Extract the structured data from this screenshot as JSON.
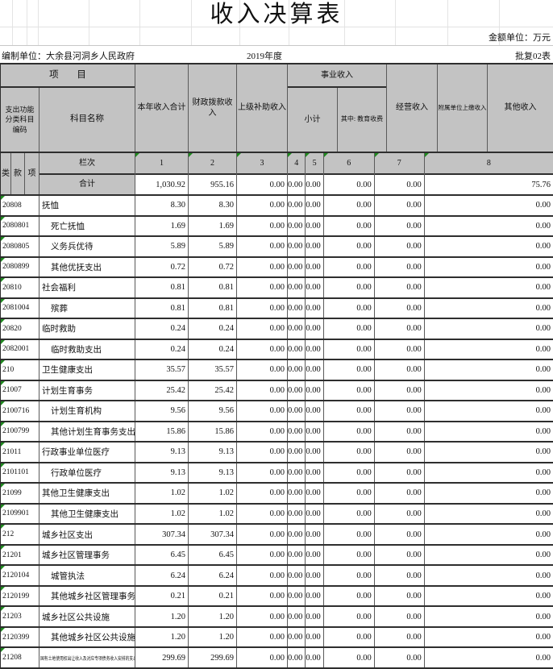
{
  "title": "收入决算表",
  "meta": {
    "unit": "金额单位：万元",
    "org": "编制单位：大余县河洞乡人民政府",
    "year": "2019年度",
    "doc_no": "批复02表"
  },
  "header": {
    "project": "项  目",
    "code_col": "支出功能分类科目编码",
    "name_col": "科目名称",
    "business_group": "事业收入",
    "cols": [
      "本年收入合计",
      "财政拨款收入",
      "上级补助收入",
      "小计",
      "其中: 教育收费",
      "经营收入",
      "附属单位上缴收入",
      "其他收入"
    ],
    "class_cols": [
      "类",
      "款",
      "项"
    ],
    "row_label": "栏次",
    "col_numbers": [
      "1",
      "2",
      "3",
      "4",
      "5",
      "6",
      "7",
      "8"
    ],
    "total_label": "合计"
  },
  "total_row": [
    "1,030.92",
    "955.16",
    "0.00",
    "0.00",
    "0.00",
    "0.00",
    "0.00",
    "75.76"
  ],
  "rows": [
    {
      "code": "20808",
      "name": "抚恤",
      "indent": 0,
      "values": [
        "8.30",
        "8.30",
        "0.00",
        "0.00",
        "0.00",
        "0.00",
        "0.00",
        "0.00"
      ]
    },
    {
      "code": "2080801",
      "name": "死亡抚恤",
      "indent": 1,
      "values": [
        "1.69",
        "1.69",
        "0.00",
        "0.00",
        "0.00",
        "0.00",
        "0.00",
        "0.00"
      ]
    },
    {
      "code": "2080805",
      "name": "义务兵优待",
      "indent": 1,
      "values": [
        "5.89",
        "5.89",
        "0.00",
        "0.00",
        "0.00",
        "0.00",
        "0.00",
        "0.00"
      ]
    },
    {
      "code": "2080899",
      "name": "其他优抚支出",
      "indent": 1,
      "values": [
        "0.72",
        "0.72",
        "0.00",
        "0.00",
        "0.00",
        "0.00",
        "0.00",
        "0.00"
      ]
    },
    {
      "code": "20810",
      "name": "社会福利",
      "indent": 0,
      "values": [
        "0.81",
        "0.81",
        "0.00",
        "0.00",
        "0.00",
        "0.00",
        "0.00",
        "0.00"
      ]
    },
    {
      "code": "2081004",
      "name": "殡葬",
      "indent": 1,
      "values": [
        "0.81",
        "0.81",
        "0.00",
        "0.00",
        "0.00",
        "0.00",
        "0.00",
        "0.00"
      ]
    },
    {
      "code": "20820",
      "name": "临时救助",
      "indent": 0,
      "values": [
        "0.24",
        "0.24",
        "0.00",
        "0.00",
        "0.00",
        "0.00",
        "0.00",
        "0.00"
      ]
    },
    {
      "code": "2082001",
      "name": "临时救助支出",
      "indent": 1,
      "values": [
        "0.24",
        "0.24",
        "0.00",
        "0.00",
        "0.00",
        "0.00",
        "0.00",
        "0.00"
      ]
    },
    {
      "code": "210",
      "name": "卫生健康支出",
      "indent": 0,
      "values": [
        "35.57",
        "35.57",
        "0.00",
        "0.00",
        "0.00",
        "0.00",
        "0.00",
        "0.00"
      ]
    },
    {
      "code": "21007",
      "name": "计划生育事务",
      "indent": 0,
      "values": [
        "25.42",
        "25.42",
        "0.00",
        "0.00",
        "0.00",
        "0.00",
        "0.00",
        "0.00"
      ]
    },
    {
      "code": "2100716",
      "name": "计划生育机构",
      "indent": 1,
      "values": [
        "9.56",
        "9.56",
        "0.00",
        "0.00",
        "0.00",
        "0.00",
        "0.00",
        "0.00"
      ]
    },
    {
      "code": "2100799",
      "name": "其他计划生育事务支出",
      "indent": 1,
      "values": [
        "15.86",
        "15.86",
        "0.00",
        "0.00",
        "0.00",
        "0.00",
        "0.00",
        "0.00"
      ]
    },
    {
      "code": "21011",
      "name": "行政事业单位医疗",
      "indent": 0,
      "values": [
        "9.13",
        "9.13",
        "0.00",
        "0.00",
        "0.00",
        "0.00",
        "0.00",
        "0.00"
      ]
    },
    {
      "code": "2101101",
      "name": "行政单位医疗",
      "indent": 1,
      "values": [
        "9.13",
        "9.13",
        "0.00",
        "0.00",
        "0.00",
        "0.00",
        "0.00",
        "0.00"
      ]
    },
    {
      "code": "21099",
      "name": "其他卫生健康支出",
      "indent": 0,
      "values": [
        "1.02",
        "1.02",
        "0.00",
        "0.00",
        "0.00",
        "0.00",
        "0.00",
        "0.00"
      ]
    },
    {
      "code": "2109901",
      "name": "其他卫生健康支出",
      "indent": 1,
      "values": [
        "1.02",
        "1.02",
        "0.00",
        "0.00",
        "0.00",
        "0.00",
        "0.00",
        "0.00"
      ]
    },
    {
      "code": "212",
      "name": "城乡社区支出",
      "indent": 0,
      "values": [
        "307.34",
        "307.34",
        "0.00",
        "0.00",
        "0.00",
        "0.00",
        "0.00",
        "0.00"
      ]
    },
    {
      "code": "21201",
      "name": "城乡社区管理事务",
      "indent": 0,
      "values": [
        "6.45",
        "6.45",
        "0.00",
        "0.00",
        "0.00",
        "0.00",
        "0.00",
        "0.00"
      ]
    },
    {
      "code": "2120104",
      "name": "城管执法",
      "indent": 1,
      "values": [
        "6.24",
        "6.24",
        "0.00",
        "0.00",
        "0.00",
        "0.00",
        "0.00",
        "0.00"
      ]
    },
    {
      "code": "2120199",
      "name": "其他城乡社区管理事务支出",
      "indent": 1,
      "values": [
        "0.21",
        "0.21",
        "0.00",
        "0.00",
        "0.00",
        "0.00",
        "0.00",
        "0.00"
      ]
    },
    {
      "code": "21203",
      "name": "城乡社区公共设施",
      "indent": 0,
      "values": [
        "1.20",
        "1.20",
        "0.00",
        "0.00",
        "0.00",
        "0.00",
        "0.00",
        "0.00"
      ]
    },
    {
      "code": "2120399",
      "name": "其他城乡社区公共设施支出",
      "indent": 1,
      "values": [
        "1.20",
        "1.20",
        "0.00",
        "0.00",
        "0.00",
        "0.00",
        "0.00",
        "0.00"
      ]
    },
    {
      "code": "21208",
      "name": "国有土地使用权出让收入及对应专项债务收入安排的支出",
      "indent": 0,
      "tiny": true,
      "values": [
        "299.69",
        "299.69",
        "0.00",
        "0.00",
        "0.00",
        "0.00",
        "0.00",
        "0.00"
      ]
    }
  ]
}
